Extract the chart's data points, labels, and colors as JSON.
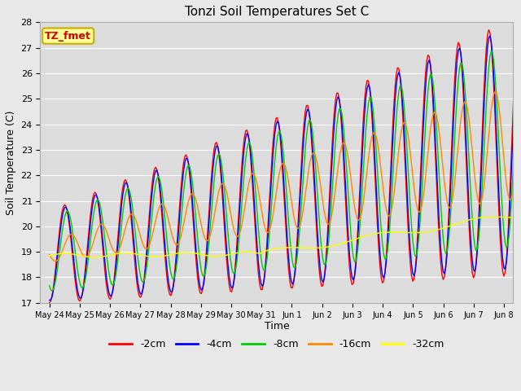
{
  "title": "Tonzi Soil Temperatures Set C",
  "xlabel": "Time",
  "ylabel": "Soil Temperature (C)",
  "ylim": [
    17.0,
    28.0
  ],
  "yticks": [
    17.0,
    18.0,
    19.0,
    20.0,
    21.0,
    22.0,
    23.0,
    24.0,
    25.0,
    26.0,
    27.0,
    28.0
  ],
  "fig_background": "#e8e8e8",
  "plot_background": "#dcdcdc",
  "grid_color": "#ffffff",
  "series_colors": [
    "#ff0000",
    "#0000ff",
    "#00cc00",
    "#ff8800",
    "#ffff00"
  ],
  "series_labels": [
    "-2cm",
    "-4cm",
    "-8cm",
    "-16cm",
    "-32cm"
  ],
  "annotation_text": "TZ_fmet",
  "annotation_bg": "#ffff99",
  "annotation_border": "#ccaa00",
  "annotation_text_color": "#cc0000",
  "xtick_labels": [
    "May 24",
    "May 25",
    "May 26",
    "May 27",
    "May 28",
    "May 29",
    "May 30",
    "May 31",
    "Jun 1",
    "Jun 2",
    "Jun 3",
    "Jun 4",
    "Jun 5",
    "Jun 6",
    "Jun 7",
    "Jun 8"
  ],
  "linewidth": 1.0,
  "title_fontsize": 11,
  "axis_label_fontsize": 9,
  "tick_fontsize": 8,
  "legend_fontsize": 9
}
